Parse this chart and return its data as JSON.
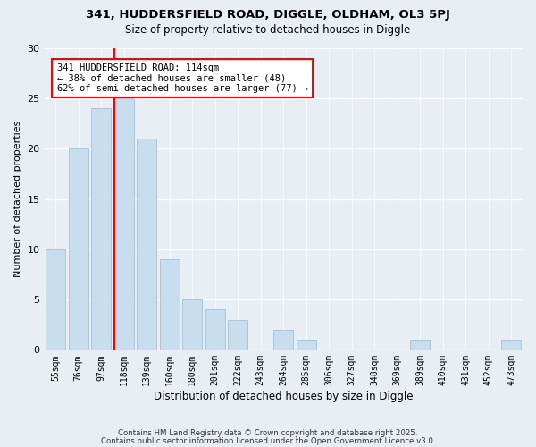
{
  "title1": "341, HUDDERSFIELD ROAD, DIGGLE, OLDHAM, OL3 5PJ",
  "title2": "Size of property relative to detached houses in Diggle",
  "xlabel": "Distribution of detached houses by size in Diggle",
  "ylabel": "Number of detached properties",
  "bar_labels": [
    "55sqm",
    "76sqm",
    "97sqm",
    "118sqm",
    "139sqm",
    "160sqm",
    "180sqm",
    "201sqm",
    "222sqm",
    "243sqm",
    "264sqm",
    "285sqm",
    "306sqm",
    "327sqm",
    "348sqm",
    "369sqm",
    "389sqm",
    "410sqm",
    "431sqm",
    "452sqm",
    "473sqm"
  ],
  "bar_values": [
    10,
    20,
    24,
    25,
    21,
    9,
    5,
    4,
    3,
    0,
    2,
    1,
    0,
    0,
    0,
    0,
    1,
    0,
    0,
    0,
    1
  ],
  "bar_color": "#c8dded",
  "bar_edge_color": "#a8c8e0",
  "vline_color": "red",
  "vline_x_index": 3,
  "ylim": [
    0,
    30
  ],
  "yticks": [
    0,
    5,
    10,
    15,
    20,
    25,
    30
  ],
  "annotation_line1": "341 HUDDERSFIELD ROAD: 114sqm",
  "annotation_line2": "← 38% of detached houses are smaller (48)",
  "annotation_line3": "62% of semi-detached houses are larger (77) →",
  "annotation_box_edgecolor": "red",
  "footer1": "Contains HM Land Registry data © Crown copyright and database right 2025.",
  "footer2": "Contains public sector information licensed under the Open Government Licence v3.0.",
  "background_color": "#e8eef4"
}
